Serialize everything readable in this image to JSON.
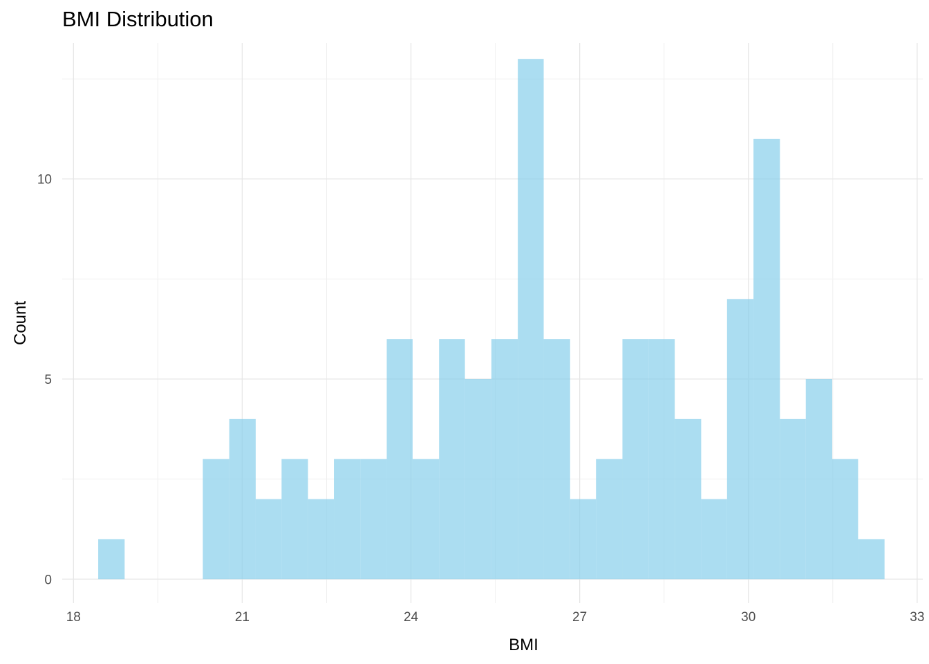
{
  "chart_data": {
    "type": "bar",
    "title": "BMI Distribution",
    "xlabel": "BMI",
    "ylabel": "Count",
    "xlim": [
      17.8,
      33.1
    ],
    "ylim": [
      -0.6,
      13.4
    ],
    "x_ticks": [
      18,
      21,
      24,
      27,
      30,
      33
    ],
    "y_ticks": [
      0,
      5,
      10
    ],
    "grid": true,
    "bar_color": "#87CEEB",
    "bins": [
      {
        "x0": 18.44,
        "x1": 18.91,
        "count": 1
      },
      {
        "x0": 18.91,
        "x1": 19.37,
        "count": 0
      },
      {
        "x0": 19.37,
        "x1": 19.84,
        "count": 0
      },
      {
        "x0": 19.84,
        "x1": 20.3,
        "count": 0
      },
      {
        "x0": 20.3,
        "x1": 20.77,
        "count": 3
      },
      {
        "x0": 20.77,
        "x1": 21.24,
        "count": 4
      },
      {
        "x0": 21.24,
        "x1": 21.7,
        "count": 2
      },
      {
        "x0": 21.7,
        "x1": 22.17,
        "count": 3
      },
      {
        "x0": 22.17,
        "x1": 22.63,
        "count": 2
      },
      {
        "x0": 22.63,
        "x1": 23.1,
        "count": 3
      },
      {
        "x0": 23.1,
        "x1": 23.57,
        "count": 3
      },
      {
        "x0": 23.57,
        "x1": 24.03,
        "count": 6
      },
      {
        "x0": 24.03,
        "x1": 24.5,
        "count": 3
      },
      {
        "x0": 24.5,
        "x1": 24.96,
        "count": 6
      },
      {
        "x0": 24.96,
        "x1": 25.43,
        "count": 5
      },
      {
        "x0": 25.43,
        "x1": 25.9,
        "count": 6
      },
      {
        "x0": 25.9,
        "x1": 26.36,
        "count": 13
      },
      {
        "x0": 26.36,
        "x1": 26.83,
        "count": 6
      },
      {
        "x0": 26.83,
        "x1": 27.29,
        "count": 2
      },
      {
        "x0": 27.29,
        "x1": 27.76,
        "count": 3
      },
      {
        "x0": 27.76,
        "x1": 28.23,
        "count": 6
      },
      {
        "x0": 28.23,
        "x1": 28.69,
        "count": 6
      },
      {
        "x0": 28.69,
        "x1": 29.16,
        "count": 4
      },
      {
        "x0": 29.16,
        "x1": 29.62,
        "count": 2
      },
      {
        "x0": 29.62,
        "x1": 30.09,
        "count": 7
      },
      {
        "x0": 30.09,
        "x1": 30.56,
        "count": 11
      },
      {
        "x0": 30.56,
        "x1": 31.02,
        "count": 4
      },
      {
        "x0": 31.02,
        "x1": 31.49,
        "count": 5
      },
      {
        "x0": 31.49,
        "x1": 31.95,
        "count": 3
      },
      {
        "x0": 31.95,
        "x1": 32.42,
        "count": 1
      }
    ]
  }
}
